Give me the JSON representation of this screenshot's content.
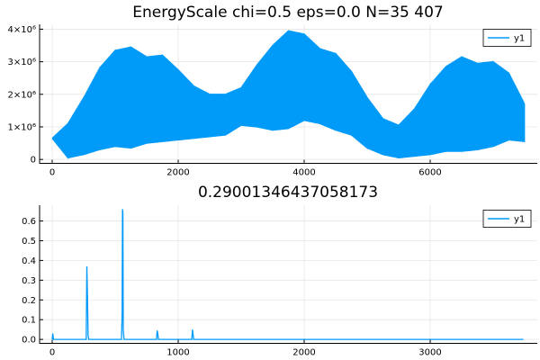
{
  "chart_data": [
    {
      "type": "line",
      "title": "EnergyScale chi=0.5 eps=0.0 N=35 407",
      "xlabel": "",
      "ylabel": "",
      "xlim": [
        -200,
        7700
      ],
      "ylim": [
        -120000,
        4150000
      ],
      "xticks": [
        0,
        2000,
        4000,
        6000
      ],
      "xtick_labels": [
        "0",
        "2000",
        "4000",
        "6000"
      ],
      "yticks": [
        0,
        1000000,
        2000000,
        3000000,
        4000000
      ],
      "ytick_labels": [
        "0",
        "1×10⁶",
        "2×10⁶",
        "3×10⁶",
        "4×10⁶"
      ],
      "grid": true,
      "legend_position": "top-right",
      "color": "#009af9",
      "series": [
        {
          "name": "y1",
          "style": "rapid oscillation between envelopes",
          "x": [
            0,
            250,
            500,
            750,
            1000,
            1250,
            1500,
            1750,
            2000,
            2250,
            2500,
            2750,
            3000,
            3250,
            3500,
            3750,
            4000,
            4250,
            4500,
            4750,
            5000,
            5250,
            5500,
            5750,
            6000,
            6250,
            6500,
            6750,
            7000,
            7250,
            7500
          ],
          "upper": [
            650000,
            1100000,
            1900000,
            2800000,
            3350000,
            3450000,
            3150000,
            3200000,
            2750000,
            2250000,
            2000000,
            2000000,
            2200000,
            2900000,
            3500000,
            3950000,
            3850000,
            3400000,
            3250000,
            2700000,
            1900000,
            1250000,
            1050000,
            1550000,
            2300000,
            2850000,
            3150000,
            2950000,
            3000000,
            2650000,
            1700000
          ],
          "lower": [
            650000,
            50000,
            150000,
            300000,
            400000,
            350000,
            500000,
            550000,
            600000,
            650000,
            700000,
            750000,
            1050000,
            1000000,
            900000,
            950000,
            1200000,
            1100000,
            900000,
            750000,
            350000,
            150000,
            50000,
            100000,
            150000,
            250000,
            250000,
            300000,
            400000,
            600000,
            550000
          ]
        }
      ]
    },
    {
      "type": "line",
      "title": "0.29001346437058173",
      "xlabel": "",
      "ylabel": "",
      "xlim": [
        -100,
        3850
      ],
      "ylim": [
        -0.02,
        0.68
      ],
      "xticks": [
        0,
        1000,
        2000,
        3000
      ],
      "xtick_labels": [
        "0",
        "1000",
        "2000",
        "3000"
      ],
      "yticks": [
        0,
        0.1,
        0.2,
        0.3,
        0.4,
        0.5,
        0.6
      ],
      "ytick_labels": [
        "0.0",
        "0.1",
        "0.2",
        "0.3",
        "0.4",
        "0.5",
        "0.6"
      ],
      "grid": true,
      "legend_position": "top-right",
      "color": "#009af9",
      "series": [
        {
          "name": "y1",
          "x": [
            0,
            5,
            10,
            270,
            275,
            280,
            285,
            290,
            295,
            550,
            555,
            558,
            561,
            564,
            570,
            828,
            833,
            838,
            843,
            1108,
            1113,
            1118,
            1123,
            3740
          ],
          "y": [
            0,
            0.03,
            0,
            0,
            0.37,
            0.22,
            0.02,
            0,
            0,
            0,
            0.13,
            0.66,
            0.64,
            0.05,
            0,
            0,
            0.045,
            0.03,
            0,
            0,
            0.05,
            0.025,
            0,
            0
          ]
        }
      ]
    }
  ]
}
